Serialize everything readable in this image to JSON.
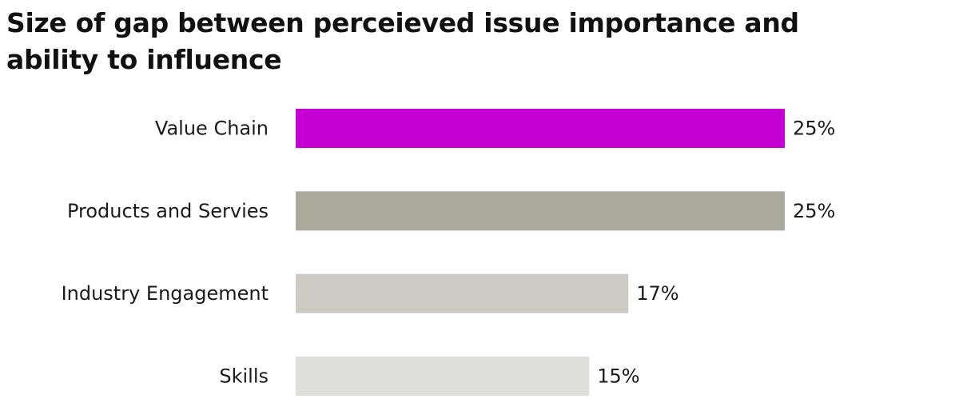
{
  "chart_data": {
    "type": "bar",
    "orientation": "horizontal",
    "title": "Size of gap between perceieved issue importance and ability to influence",
    "categories": [
      "Value Chain",
      "Products and Servies",
      "Industry Engagement",
      "Skills"
    ],
    "values": [
      25,
      25,
      17,
      15
    ],
    "value_labels": [
      "25%",
      "25%",
      "17%",
      "15%"
    ],
    "colors": [
      "#c400d3",
      "#aaaa9c",
      "#cbcbc3",
      "#dededa"
    ],
    "xlabel": "",
    "ylabel": "",
    "xlim": [
      0,
      25
    ],
    "grid": false,
    "legend": "none"
  }
}
